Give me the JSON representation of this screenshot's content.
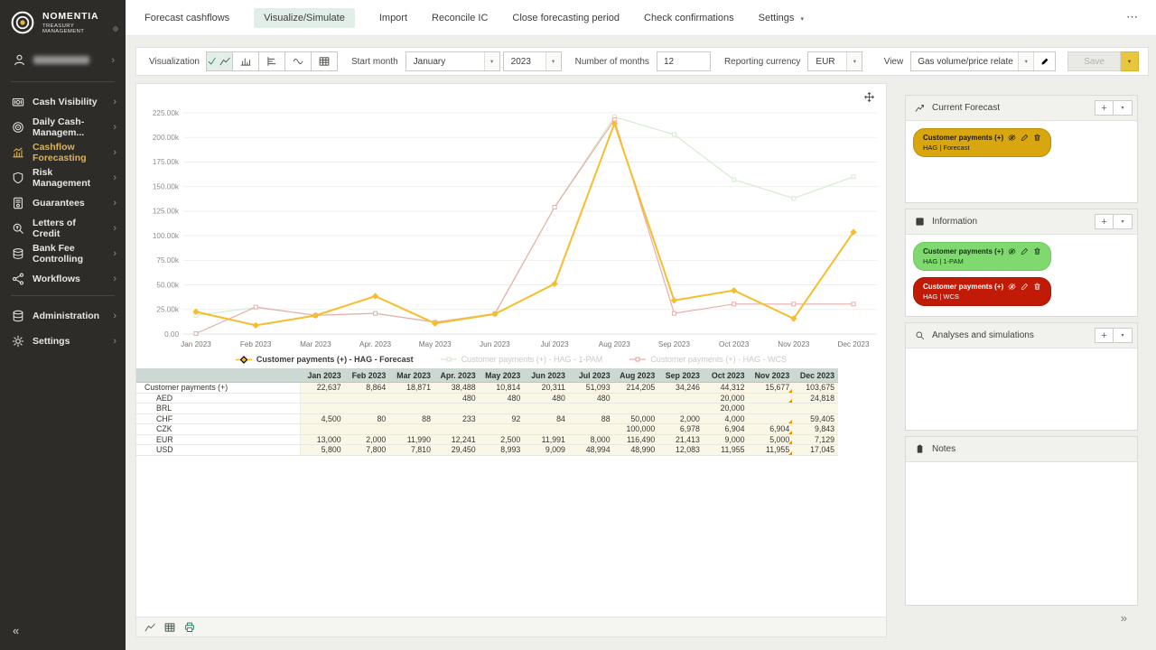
{
  "brand": {
    "line1": "NOMENTIA",
    "line2": "TREASURY MANAGEMENT"
  },
  "icons": {
    "overflow": "⋯",
    "dropdown": "▾",
    "chevron_right": "›",
    "collapse_left": "«",
    "collapse_right": "»"
  },
  "topnav": {
    "tabs": [
      "Forecast cashflows",
      "Visualize/Simulate",
      "Import",
      "Reconcile IC",
      "Close forecasting period",
      "Check confirmations",
      "Settings"
    ],
    "active_tab": "Visualize/Simulate",
    "dropdown_tabs": [
      "Settings"
    ]
  },
  "sidebar": {
    "main_items": [
      {
        "label": "Cash Visibility",
        "icon": "cash-visibility",
        "active": false
      },
      {
        "label": "Daily Cash-Managem...",
        "icon": "daily-cash-management",
        "active": false
      },
      {
        "label": "Cashflow Forecasting",
        "icon": "cashflow-forecasting",
        "active": true
      },
      {
        "label": "Risk Management",
        "icon": "risk-management",
        "active": false
      },
      {
        "label": "Guarantees",
        "icon": "guarantees",
        "active": false
      },
      {
        "label": "Letters of Credit",
        "icon": "letters-of-credit",
        "active": false
      },
      {
        "label": "Bank Fee Controlling",
        "icon": "bank-fee-controlling",
        "active": false
      },
      {
        "label": "Workflows",
        "icon": "workflows",
        "active": false
      }
    ],
    "footer_items": [
      {
        "label": "Administration",
        "icon": "administration",
        "active": false
      },
      {
        "label": "Settings",
        "icon": "settings",
        "active": false
      }
    ],
    "collapse_icon": "«"
  },
  "toolbar": {
    "visualization_label": "Visualization",
    "viz_buttons": [
      {
        "icon": "line-chart",
        "active": true
      },
      {
        "icon": "bar-chart",
        "active": false
      },
      {
        "icon": "horizontal-bar-chart",
        "active": false
      },
      {
        "icon": "wave-chart",
        "active": false
      },
      {
        "icon": "table-view",
        "active": false
      }
    ],
    "start_month_label": "Start month",
    "start_month_value": "January",
    "start_year_value": "2023",
    "months_label": "Number of months",
    "months_value": "12",
    "currency_label": "Reporting currency",
    "currency_value": "EUR",
    "view_label": "View",
    "view_value": "Gas volume/price relate",
    "save_label": "Save"
  },
  "chart_data": {
    "type": "line",
    "categories": [
      "Jan 2023",
      "Feb 2023",
      "Mar 2023",
      "Apr. 2023",
      "May 2023",
      "Jun 2023",
      "Jul 2023",
      "Aug 2023",
      "Sep 2023",
      "Oct 2023",
      "Nov 2023",
      "Dec 2023"
    ],
    "series": [
      {
        "name": "Customer payments (+) - HAG - 1-PAM",
        "color": "#d6ebd1",
        "faded": true,
        "values": [
          19000,
          27000,
          19000,
          21000,
          12000,
          21000,
          129000,
          221000,
          203000,
          157000,
          138000,
          160000
        ]
      },
      {
        "name": "Customer payments (+) - HAG - WCS",
        "color": "#e6aeaa",
        "faded": true,
        "values": [
          500,
          27500,
          19000,
          21000,
          12000,
          20500,
          129000,
          218000,
          21000,
          30500,
          30500,
          30500
        ]
      },
      {
        "name": "Customer payments (+) - HAG - Forecast",
        "color": "#f6bd2c",
        "faded": false,
        "values": [
          22637,
          8864,
          18871,
          38488,
          10814,
          20311,
          51093,
          214205,
          34246,
          44312,
          15677,
          103675
        ]
      }
    ],
    "legend_order": [
      "Customer payments (+) - HAG - Forecast",
      "Customer payments (+) - HAG - 1-PAM",
      "Customer payments (+) - HAG - WCS"
    ],
    "ylim": [
      0,
      235000
    ],
    "yticks": [
      0,
      25000,
      50000,
      75000,
      100000,
      125000,
      150000,
      175000,
      200000,
      225000
    ],
    "ytick_labels": [
      "0.00",
      "25.00k",
      "50.00k",
      "75.00k",
      "100.00k",
      "125.00k",
      "150.00k",
      "175.00k",
      "200.00k",
      "225.00k"
    ],
    "grid": true,
    "legend_position": "bottom"
  },
  "table": {
    "columns": [
      "Jan 2023",
      "Feb 2023",
      "Mar 2023",
      "Apr. 2023",
      "May 2023",
      "Jun 2023",
      "Jul 2023",
      "Aug 2023",
      "Sep 2023",
      "Oct 2023",
      "Nov 2023",
      "Dec 2023"
    ],
    "rows": [
      {
        "label": "Customer payments (+)",
        "indent": false,
        "marker_cols": [
          10
        ],
        "values": [
          "22,637",
          "8,864",
          "18,871",
          "38,488",
          "10,814",
          "20,311",
          "51,093",
          "214,205",
          "34,246",
          "44,312",
          "15,677",
          "103,675"
        ]
      },
      {
        "label": "AED",
        "indent": true,
        "marker_cols": [
          10
        ],
        "values": [
          "",
          "",
          "",
          "480",
          "480",
          "480",
          "480",
          "",
          "",
          "20,000",
          "",
          "24,818"
        ]
      },
      {
        "label": "BRL",
        "indent": true,
        "marker_cols": [],
        "values": [
          "",
          "",
          "",
          "",
          "",
          "",
          "",
          "",
          "",
          "20,000",
          "",
          ""
        ]
      },
      {
        "label": "CHF",
        "indent": true,
        "marker_cols": [
          10
        ],
        "values": [
          "4,500",
          "80",
          "88",
          "233",
          "92",
          "84",
          "88",
          "50,000",
          "2,000",
          "4,000",
          "",
          "59,405"
        ]
      },
      {
        "label": "CZK",
        "indent": true,
        "marker_cols": [
          10
        ],
        "values": [
          "",
          "",
          "",
          "",
          "",
          "",
          "",
          "100,000",
          "6,978",
          "6,904",
          "6,904",
          "9,843"
        ]
      },
      {
        "label": "EUR",
        "indent": true,
        "marker_cols": [
          10
        ],
        "values": [
          "13,000",
          "2,000",
          "11,990",
          "12,241",
          "2,500",
          "11,991",
          "8,000",
          "116,490",
          "21,413",
          "9,000",
          "5,000",
          "7,129"
        ]
      },
      {
        "label": "USD",
        "indent": true,
        "marker_cols": [
          10
        ],
        "values": [
          "5,800",
          "7,800",
          "7,810",
          "29,450",
          "8,993",
          "9,009",
          "48,994",
          "48,990",
          "12,083",
          "11,955",
          "11,955",
          "17,045"
        ]
      }
    ]
  },
  "bottom_toolbar": {
    "icons": [
      "line-chart",
      "table-view",
      "print"
    ]
  },
  "right_panel": {
    "collapse_icon": "»",
    "sections": [
      {
        "title": "Current Forecast",
        "icon": "chart-trend",
        "has_buttons": true,
        "pills": [
          {
            "title": "Customer payments (+)",
            "subtitle": "HAG | Forecast",
            "bg": "#d8a70f",
            "border": "#b98f04",
            "fg": "#191611"
          }
        ]
      },
      {
        "title": "Information",
        "icon": "info",
        "has_buttons": true,
        "pills": [
          {
            "title": "Customer payments (+)",
            "subtitle": "HAG | 1-PAM",
            "bg": "#7fd96f",
            "border": "#6fcb5f",
            "fg": "#10310c"
          },
          {
            "title": "Customer payments (+)",
            "subtitle": "HAG | WCS",
            "bg": "#c11b07",
            "border": "#a91503",
            "fg": "#ffffff"
          }
        ]
      },
      {
        "title": "Analyses and simulations",
        "icon": "search",
        "has_buttons": true,
        "pills": []
      },
      {
        "title": "Notes",
        "icon": "notes",
        "has_buttons": false,
        "pills": []
      }
    ]
  }
}
